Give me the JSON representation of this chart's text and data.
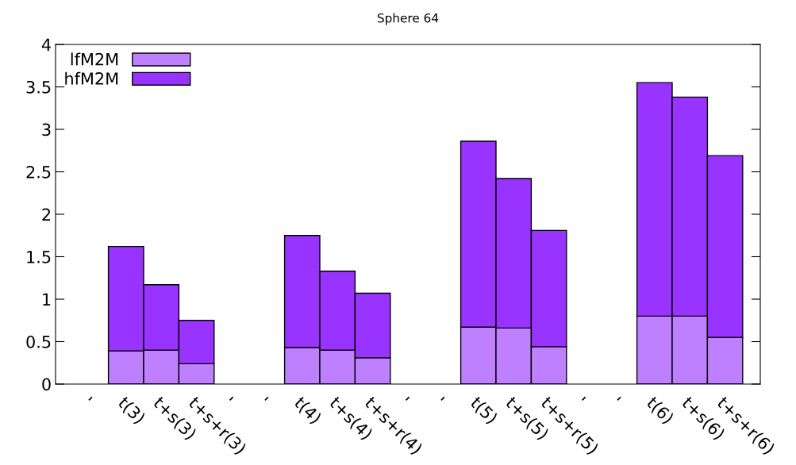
{
  "chart_data": {
    "type": "bar",
    "title": "Sphere 64",
    "stacked": true,
    "categories": [
      "'",
      "t(3)",
      "t+s(3)",
      "t+s+r(3)",
      "'",
      "'",
      "t(4)",
      "t+s(4)",
      "t+s+r(4)",
      "'",
      "'",
      "t(5)",
      "t+s(5)",
      "t+s+r(5)",
      "'",
      "'",
      "t(6)",
      "t+s(6)",
      "t+s+r(6)"
    ],
    "series": [
      {
        "name": "lfM2M",
        "color": "#bf80ff",
        "values": [
          null,
          0.39,
          0.4,
          0.24,
          null,
          null,
          0.43,
          0.4,
          0.31,
          null,
          null,
          0.67,
          0.66,
          0.44,
          null,
          null,
          0.8,
          0.8,
          0.55
        ]
      },
      {
        "name": "hfM2M",
        "color": "#9933ff",
        "values": [
          null,
          1.23,
          0.77,
          0.51,
          null,
          null,
          1.32,
          0.93,
          0.76,
          null,
          null,
          2.19,
          1.76,
          1.37,
          null,
          null,
          2.75,
          2.58,
          2.14
        ]
      }
    ],
    "ylim": [
      0,
      4
    ],
    "yticks": [
      0,
      0.5,
      1,
      1.5,
      2,
      2.5,
      3,
      3.5,
      4
    ],
    "legend": "top left",
    "grid": false
  }
}
